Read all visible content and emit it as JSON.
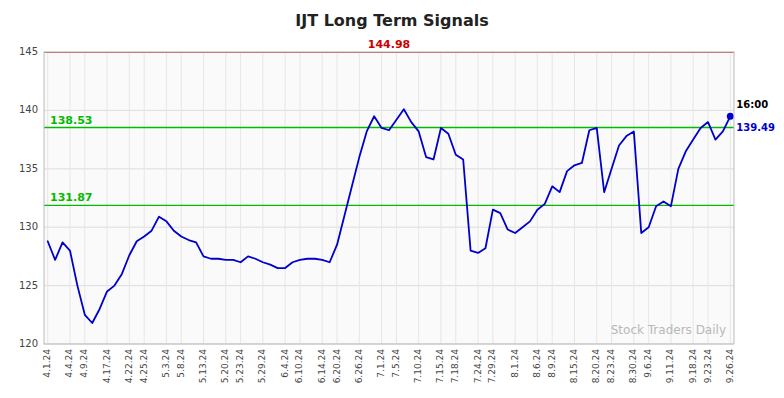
{
  "chart_data": {
    "type": "line",
    "title": "IJT Long Term Signals",
    "categories": [
      "4.1.24",
      null,
      null,
      "4.4.24",
      null,
      "4.9.24",
      null,
      null,
      "4.17.24",
      null,
      null,
      "4.22.24",
      null,
      "4.25.24",
      null,
      null,
      "5.3.24",
      null,
      "5.8.24",
      null,
      null,
      "5.13.24",
      null,
      null,
      "5.20.24",
      null,
      "5.23.24",
      null,
      null,
      "5.29.24",
      null,
      null,
      "6.4.24",
      null,
      "6.10.24",
      null,
      null,
      "6.14.24",
      null,
      "6.20.24",
      null,
      null,
      "6.26.24",
      null,
      null,
      "7.1.24",
      null,
      "7.5.24",
      null,
      null,
      "7.10.24",
      null,
      null,
      "7.15.24",
      null,
      "7.18.24",
      null,
      null,
      "7.24.24",
      null,
      "7.29.24",
      null,
      null,
      "8.1.24",
      null,
      null,
      "8.6.24",
      null,
      "8.9.24",
      null,
      null,
      "8.15.24",
      null,
      null,
      "8.20.24",
      null,
      "8.23.24",
      null,
      null,
      "8.30.24",
      null,
      "9.6.24",
      null,
      null,
      "9.11.24",
      null,
      null,
      "9.18.24",
      null,
      "9.23.24",
      null,
      null,
      "9.26.24"
    ],
    "values": [
      128.8,
      127.2,
      128.7,
      128.0,
      125.0,
      122.5,
      121.8,
      123.0,
      124.5,
      125.0,
      126.0,
      127.6,
      128.8,
      129.2,
      129.7,
      130.9,
      130.5,
      129.7,
      129.2,
      128.9,
      128.7,
      127.5,
      127.3,
      127.3,
      127.2,
      127.2,
      127.0,
      127.5,
      127.3,
      127.0,
      126.8,
      126.5,
      126.5,
      127.0,
      127.2,
      127.3,
      127.3,
      127.2,
      127.0,
      128.5,
      131.0,
      133.5,
      136.0,
      138.2,
      139.5,
      138.5,
      138.3,
      139.2,
      140.1,
      139.0,
      138.2,
      136.0,
      135.8,
      138.5,
      138.0,
      136.2,
      135.8,
      128.0,
      127.8,
      128.2,
      131.5,
      131.2,
      129.8,
      129.5,
      130.0,
      130.5,
      131.5,
      132.0,
      133.5,
      133.0,
      134.8,
      135.3,
      135.5,
      138.3,
      138.5,
      133.0,
      135.0,
      137.0,
      137.8,
      138.2,
      129.5,
      130.0,
      131.8,
      132.2,
      131.8,
      135.0,
      136.5,
      137.5,
      138.5,
      139.0,
      137.5,
      138.2,
      139.49
    ],
    "color": "#0000cc",
    "ylim": [
      120,
      145
    ],
    "yticks": [
      120,
      125,
      130,
      135,
      140,
      145
    ],
    "grid": true,
    "reference_lines": [
      {
        "value": 144.98,
        "color": "#cc0000",
        "band_color": "#ffcccc"
      },
      {
        "value": 138.53,
        "color": "#00bb00"
      },
      {
        "value": 131.87,
        "color": "#00bb00"
      }
    ],
    "annotations": [
      "16:00",
      "Stock Traders Daily"
    ]
  }
}
